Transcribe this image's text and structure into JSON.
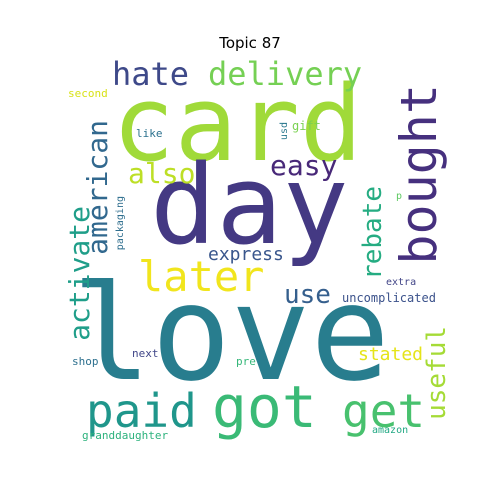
{
  "title": "Topic 87",
  "words": [
    {
      "text": "love",
      "color": "#287d8e"
    },
    {
      "text": "card",
      "color": "#a0da39"
    },
    {
      "text": "day",
      "color": "#443983"
    },
    {
      "text": "got",
      "color": "#3aba76"
    },
    {
      "text": "paid",
      "color": "#1f968b"
    },
    {
      "text": "bought",
      "color": "#46307e"
    },
    {
      "text": "later",
      "color": "#f1e51d"
    },
    {
      "text": "get",
      "color": "#48c16e"
    },
    {
      "text": "delivery",
      "color": "#75d054"
    },
    {
      "text": "hate",
      "color": "#3e4989"
    },
    {
      "text": "american",
      "color": "#31688e"
    },
    {
      "text": "activate",
      "color": "#1f9e89"
    },
    {
      "text": "easy",
      "color": "#482878"
    },
    {
      "text": "also",
      "color": "#bddf26"
    },
    {
      "text": "rebate",
      "color": "#25ac82"
    },
    {
      "text": "use",
      "color": "#355f8d"
    },
    {
      "text": "useful",
      "color": "#a5db36"
    },
    {
      "text": "express",
      "color": "#39568c"
    },
    {
      "text": "stated",
      "color": "#e5e419"
    },
    {
      "text": "uncomplicated",
      "color": "#3b528b"
    },
    {
      "text": "second",
      "color": "#d8e219"
    },
    {
      "text": "gift",
      "color": "#7ad151"
    },
    {
      "text": "like",
      "color": "#2c718e"
    },
    {
      "text": "usd",
      "color": "#2a788e"
    },
    {
      "text": "packaging",
      "color": "#2e6e8e"
    },
    {
      "text": "p",
      "color": "#5ec962"
    },
    {
      "text": "extra",
      "color": "#414487"
    },
    {
      "text": "shop",
      "color": "#2d708e"
    },
    {
      "text": "next",
      "color": "#404688"
    },
    {
      "text": "pre",
      "color": "#35b779"
    },
    {
      "text": "amazon",
      "color": "#22a884"
    },
    {
      "text": "granddaughter",
      "color": "#2db27d"
    }
  ]
}
